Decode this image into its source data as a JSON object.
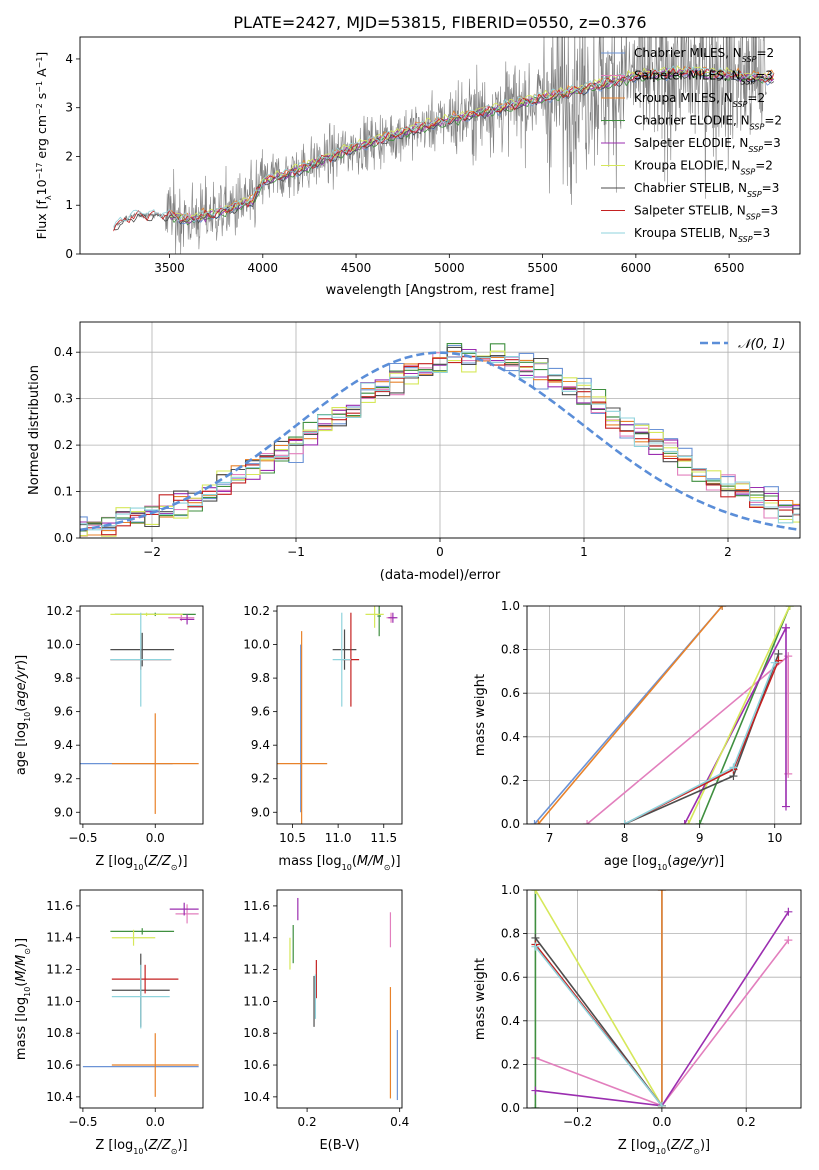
{
  "figure": {
    "title": "PLATE=2427, MJD=53815, FIBERID=0550, z=0.376"
  },
  "models": [
    {
      "key": "chabrier_miles",
      "label": "Chabrier MILES",
      "nssp": "2",
      "color": "#6b93d6"
    },
    {
      "key": "salpeter_miles",
      "label": "Salpeter MILES",
      "nssp": "3",
      "color": "#e27fbd"
    },
    {
      "key": "kroupa_miles",
      "label": "Kroupa MILES",
      "nssp": "2",
      "color": "#e8822a"
    },
    {
      "key": "chabrier_elodie",
      "label": "Chabrier ELODIE",
      "nssp": "2",
      "color": "#3f8f3f"
    },
    {
      "key": "salpeter_elodie",
      "label": "Salpeter ELODIE",
      "nssp": "3",
      "color": "#9b2eb0"
    },
    {
      "key": "kroupa_elodie",
      "label": "Kroupa ELODIE",
      "nssp": "2",
      "color": "#d6e85a"
    },
    {
      "key": "chabrier_stelib",
      "label": "Chabrier STELIB",
      "nssp": "3",
      "color": "#4d4d4d"
    },
    {
      "key": "salpeter_stelib",
      "label": "Salpeter STELIB",
      "nssp": "3",
      "color": "#c42121"
    },
    {
      "key": "kroupa_stelib",
      "label": "Kroupa STELIB",
      "nssp": "3",
      "color": "#8fd3dc"
    }
  ],
  "chart_data": [
    {
      "id": "spectrum",
      "type": "line",
      "xlabel": "wavelength [Angstrom, rest frame]",
      "ylabel": "Flux [f_λ 10^-17 erg cm^-2 s^-1 A^-1]",
      "xlim": [
        3020,
        6880
      ],
      "ylim": [
        0,
        4.45
      ],
      "xticks": [
        3500,
        4000,
        4500,
        5000,
        5500,
        6000,
        6500
      ],
      "yticks": [
        0,
        1,
        2,
        3,
        4
      ],
      "data_color": "#7f7f7f",
      "data_range": [
        3200,
        6700
      ],
      "model_anchor_x": [
        3200,
        3300,
        3500,
        3600,
        3800,
        3950,
        4000,
        4100,
        4300,
        4500,
        4800,
        5000,
        5500,
        6000,
        6300,
        6700
      ],
      "model_anchor_y": [
        0.55,
        0.8,
        0.8,
        0.7,
        0.9,
        1.1,
        1.5,
        1.6,
        1.9,
        2.2,
        2.55,
        2.75,
        3.2,
        3.65,
        3.75,
        3.6
      ],
      "legend": "upper right"
    },
    {
      "id": "residuals",
      "type": "line",
      "xlabel": "(data-model)/error",
      "ylabel": "Normed distribution",
      "xlim": [
        -2.5,
        2.5
      ],
      "ylim": [
        0,
        0.465
      ],
      "xticks": [
        -2,
        -1,
        0,
        1,
        2
      ],
      "yticks": [
        0,
        0.1,
        0.2,
        0.3,
        0.4
      ],
      "gaussian_label": "𝒩(0, 1)",
      "gaussian_color": "#5b8ed8",
      "bin_width": 0.1,
      "legend": "upper right",
      "grid": true
    },
    {
      "id": "age_vs_z",
      "type": "scatter",
      "xlabel": "Z [log10(Z/Z⊙)]",
      "ylabel": "age  [log10(age/yr)]",
      "xlim": [
        -0.52,
        0.33
      ],
      "ylim": [
        8.93,
        10.23
      ],
      "xticks": [
        -0.5,
        0.0
      ],
      "yticks": [
        9.0,
        9.2,
        9.4,
        9.6,
        9.8,
        10.0,
        10.2
      ],
      "points": [
        {
          "model": "chabrier_miles",
          "x": -0.2,
          "y": 9.29,
          "xerr": 0.32,
          "yerr": 0.0
        },
        {
          "model": "kroupa_miles",
          "x": 0.0,
          "y": 9.29,
          "xerr": 0.3,
          "yerr": 0.3
        },
        {
          "model": "salpeter_miles",
          "x": 0.18,
          "y": 10.16,
          "xerr": 0.09,
          "yerr": 0.02
        },
        {
          "model": "chabrier_elodie",
          "x": 0.0,
          "y": 10.18,
          "xerr": 0.28,
          "yerr": 0.01
        },
        {
          "model": "salpeter_elodie",
          "x": 0.22,
          "y": 10.15,
          "xerr": 0.05,
          "yerr": 0.03
        },
        {
          "model": "kroupa_elodie",
          "x": -0.06,
          "y": 10.18,
          "xerr": 0.25,
          "yerr": 0.01
        },
        {
          "model": "chabrier_stelib",
          "x": -0.09,
          "y": 9.97,
          "xerr": 0.22,
          "yerr": 0.1
        },
        {
          "model": "salpeter_stelib",
          "x": -0.1,
          "y": 9.91,
          "xerr": 0.21,
          "yerr": 0.06
        },
        {
          "model": "kroupa_stelib",
          "x": -0.1,
          "y": 9.91,
          "xerr": 0.21,
          "yerr": 0.28
        }
      ]
    },
    {
      "id": "age_vs_mass",
      "type": "scatter",
      "xlabel": "mass [log10(M/M⊙)]",
      "ylabel": "",
      "xlim": [
        10.33,
        11.7
      ],
      "ylim": [
        8.93,
        10.23
      ],
      "xticks": [
        10.5,
        11.0,
        11.5
      ],
      "yticks": [
        9.0,
        9.2,
        9.4,
        9.6,
        9.8,
        10.0,
        10.2
      ],
      "points": [
        {
          "model": "chabrier_miles",
          "x": 10.59,
          "y": 9.5,
          "xerr": 0.0,
          "yerr": 0.5
        },
        {
          "model": "kroupa_miles",
          "x": 10.6,
          "y": 9.29,
          "xerr": 0.28,
          "yerr": 0.79
        },
        {
          "model": "salpeter_miles",
          "x": 11.58,
          "y": 10.16,
          "xerr": 0.05,
          "yerr": 0.03
        },
        {
          "model": "chabrier_elodie",
          "x": 11.45,
          "y": 10.17,
          "xerr": 0.02,
          "yerr": 0.12
        },
        {
          "model": "salpeter_elodie",
          "x": 11.6,
          "y": 10.16,
          "xerr": 0.05,
          "yerr": 0.03
        },
        {
          "model": "kroupa_elodie",
          "x": 11.4,
          "y": 10.18,
          "xerr": 0.1,
          "yerr": 0.08
        },
        {
          "model": "chabrier_stelib",
          "x": 11.07,
          "y": 9.97,
          "xerr": 0.13,
          "yerr": 0.12
        },
        {
          "model": "salpeter_stelib",
          "x": 11.14,
          "y": 9.91,
          "xerr": 0.09,
          "yerr": 0.28
        },
        {
          "model": "kroupa_stelib",
          "x": 11.04,
          "y": 9.91,
          "xerr": 0.1,
          "yerr": 0.28
        }
      ]
    },
    {
      "id": "mass_weight_vs_age",
      "type": "line",
      "xlabel": "age  [log10(age/yr)]",
      "ylabel": "mass weight",
      "xlim": [
        6.7,
        10.35
      ],
      "ylim": [
        0,
        1
      ],
      "xticks": [
        7,
        8,
        9,
        10
      ],
      "yticks": [
        0.0,
        0.2,
        0.4,
        0.6,
        0.8,
        1.0
      ],
      "grid": true,
      "series": [
        {
          "model": "chabrier_miles",
          "x": [
            6.8,
            9.3
          ],
          "y": [
            0.0,
            1.0
          ]
        },
        {
          "model": "kroupa_miles",
          "x": [
            6.85,
            9.3
          ],
          "y": [
            0.0,
            1.0
          ]
        },
        {
          "model": "salpeter_miles",
          "x": [
            7.5,
            10.18,
            10.18
          ],
          "y": [
            0.0,
            0.77,
            0.23
          ]
        },
        {
          "model": "chabrier_elodie",
          "x": [
            9.0,
            10.2
          ],
          "y": [
            0.0,
            1.0
          ]
        },
        {
          "model": "salpeter_elodie",
          "x": [
            8.8,
            10.15,
            10.15,
            10.15
          ],
          "y": [
            0.0,
            0.9,
            0.9,
            0.08
          ]
        },
        {
          "model": "kroupa_elodie",
          "x": [
            8.85,
            10.2
          ],
          "y": [
            0.0,
            1.0
          ]
        },
        {
          "model": "chabrier_stelib",
          "x": [
            8.0,
            9.45,
            10.05
          ],
          "y": [
            0.0,
            0.22,
            0.78
          ]
        },
        {
          "model": "salpeter_stelib",
          "x": [
            8.0,
            9.45,
            10.05
          ],
          "y": [
            0.0,
            0.25,
            0.75
          ]
        },
        {
          "model": "kroupa_stelib",
          "x": [
            8.0,
            9.45,
            10.0
          ],
          "y": [
            0.0,
            0.26,
            0.74
          ]
        }
      ]
    },
    {
      "id": "mass_vs_z",
      "type": "scatter",
      "xlabel": "Z [log10(Z/Z⊙)]",
      "ylabel": "mass [log10(M/M⊙)]",
      "xlim": [
        -0.52,
        0.33
      ],
      "ylim": [
        10.33,
        11.7
      ],
      "xticks": [
        -0.5,
        0.0
      ],
      "yticks": [
        10.4,
        10.6,
        10.8,
        11.0,
        11.2,
        11.4,
        11.6
      ],
      "points": [
        {
          "model": "chabrier_miles",
          "x": -0.1,
          "y": 10.59,
          "xerr": 0.4,
          "yerr": 0.0
        },
        {
          "model": "kroupa_miles",
          "x": 0.0,
          "y": 10.6,
          "xerr": 0.3,
          "yerr": 0.2
        },
        {
          "model": "salpeter_miles",
          "x": 0.22,
          "y": 11.55,
          "xerr": 0.08,
          "yerr": 0.06
        },
        {
          "model": "chabrier_elodie",
          "x": -0.09,
          "y": 11.44,
          "xerr": 0.22,
          "yerr": 0.02
        },
        {
          "model": "salpeter_elodie",
          "x": 0.2,
          "y": 11.58,
          "xerr": 0.1,
          "yerr": 0.04
        },
        {
          "model": "kroupa_elodie",
          "x": -0.15,
          "y": 11.4,
          "xerr": 0.15,
          "yerr": 0.05
        },
        {
          "model": "chabrier_stelib",
          "x": -0.1,
          "y": 11.07,
          "xerr": 0.2,
          "yerr": 0.23
        },
        {
          "model": "salpeter_stelib",
          "x": -0.07,
          "y": 11.14,
          "xerr": 0.23,
          "yerr": 0.09
        },
        {
          "model": "kroupa_stelib",
          "x": -0.1,
          "y": 11.03,
          "xerr": 0.2,
          "yerr": 0.2
        }
      ]
    },
    {
      "id": "mass_vs_ebv",
      "type": "scatter",
      "xlabel": "E(B-V)",
      "ylabel": "",
      "xlim": [
        0.135,
        0.405
      ],
      "ylim": [
        10.33,
        11.7
      ],
      "xticks": [
        0.2,
        0.4
      ],
      "yticks": [
        10.4,
        10.6,
        10.8,
        11.0,
        11.2,
        11.4,
        11.6
      ],
      "points": [
        {
          "model": "chabrier_miles",
          "x": 0.395,
          "y": 10.6,
          "xerr": 0.0,
          "yerr": 0.22
        },
        {
          "model": "kroupa_miles",
          "x": 0.38,
          "y": 10.74,
          "xerr": 0.0,
          "yerr": 0.35
        },
        {
          "model": "salpeter_miles",
          "x": 0.38,
          "y": 11.45,
          "xerr": 0.0,
          "yerr": 0.11
        },
        {
          "model": "chabrier_elodie",
          "x": 0.17,
          "y": 11.36,
          "xerr": 0.0,
          "yerr": 0.12
        },
        {
          "model": "salpeter_elodie",
          "x": 0.18,
          "y": 11.58,
          "xerr": 0.0,
          "yerr": 0.07
        },
        {
          "model": "kroupa_elodie",
          "x": 0.163,
          "y": 11.3,
          "xerr": 0.0,
          "yerr": 0.1
        },
        {
          "model": "chabrier_stelib",
          "x": 0.215,
          "y": 11.0,
          "xerr": 0.0,
          "yerr": 0.16
        },
        {
          "model": "salpeter_stelib",
          "x": 0.22,
          "y": 11.14,
          "xerr": 0.0,
          "yerr": 0.12
        },
        {
          "model": "kroupa_stelib",
          "x": 0.218,
          "y": 11.03,
          "xerr": 0.0,
          "yerr": 0.14
        }
      ]
    },
    {
      "id": "mass_weight_vs_z",
      "type": "line",
      "xlabel": "Z [log10(Z/Z⊙)]",
      "ylabel": "mass weight",
      "xlim": [
        -0.32,
        0.33
      ],
      "ylim": [
        0,
        1
      ],
      "xticks": [
        -0.2,
        0.0,
        0.2
      ],
      "yticks": [
        0.0,
        0.2,
        0.4,
        0.6,
        0.8,
        1.0
      ],
      "grid": true,
      "series": [
        {
          "model": "chabrier_miles",
          "x": [
            0.0,
            0.0
          ],
          "y": [
            0.0,
            1.0
          ]
        },
        {
          "model": "kroupa_miles",
          "x": [
            0.0,
            0.0
          ],
          "y": [
            0.0,
            1.0
          ]
        },
        {
          "model": "salpeter_miles",
          "x": [
            -0.3,
            0.0,
            0.3
          ],
          "y": [
            0.23,
            0.01,
            0.77
          ]
        },
        {
          "model": "chabrier_elodie",
          "x": [
            -0.3,
            -0.3
          ],
          "y": [
            0.0,
            1.0
          ]
        },
        {
          "model": "salpeter_elodie",
          "x": [
            -0.3,
            0.0,
            0.3
          ],
          "y": [
            0.08,
            0.01,
            0.9
          ]
        },
        {
          "model": "kroupa_elodie",
          "x": [
            -0.3,
            0.0
          ],
          "y": [
            1.0,
            0.01
          ]
        },
        {
          "model": "chabrier_stelib",
          "x": [
            -0.3,
            0.0
          ],
          "y": [
            0.78,
            0.01
          ]
        },
        {
          "model": "salpeter_stelib",
          "x": [
            -0.3,
            0.0
          ],
          "y": [
            0.75,
            0.01
          ]
        },
        {
          "model": "kroupa_stelib",
          "x": [
            -0.3,
            0.0
          ],
          "y": [
            0.74,
            0.01
          ]
        }
      ]
    }
  ]
}
